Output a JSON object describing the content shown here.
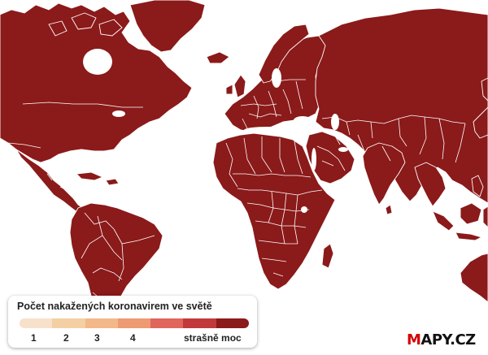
{
  "map": {
    "fill_color": "#8b1a1a",
    "border_color": "#ffffff",
    "background": "#ffffff"
  },
  "legend": {
    "title": "Počet nakažených koronavirem ve světě",
    "colors": [
      "#f7e1cb",
      "#f4cfa3",
      "#f2b889",
      "#ee9a72",
      "#e0655c",
      "#c2393b",
      "#8b1a1a"
    ],
    "labels": [
      "1",
      "2",
      "3",
      "4",
      "strašně moc"
    ]
  },
  "logo": {
    "brand_m": "M",
    "brand_rest": "APY.CZ"
  }
}
